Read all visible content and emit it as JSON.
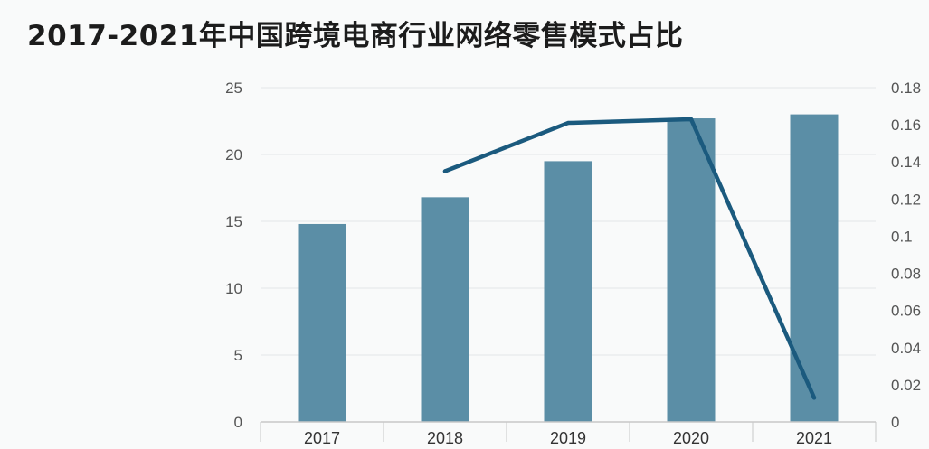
{
  "chart_data": {
    "type": "bar",
    "title": "2017-2021年中国跨境电商行业网络零售模式占比",
    "categories": [
      "2017",
      "2018",
      "2019",
      "2020",
      "2021"
    ],
    "series": [
      {
        "type": "bar",
        "axis": "left",
        "values": [
          14.8,
          16.8,
          19.5,
          22.7,
          23.0
        ]
      },
      {
        "type": "line",
        "axis": "right",
        "values": [
          null,
          0.135,
          0.161,
          0.163,
          0.013
        ]
      }
    ],
    "y_left": {
      "ylim": [
        0,
        25
      ],
      "ticks": [
        "0",
        "5",
        "10",
        "15",
        "20",
        "25"
      ]
    },
    "y_right": {
      "ylim": [
        0,
        0.18
      ],
      "ticks": [
        "0",
        "0.02",
        "0.04",
        "0.06",
        "0.08",
        "0.1",
        "0.12",
        "0.14",
        "0.16",
        "0.18"
      ]
    },
    "grid": true,
    "legend": "none",
    "colors": {
      "bar": "#5b8ea6",
      "line": "#1b5a7e",
      "grid": "#e3e6e8",
      "axis": "#c8c8c8"
    }
  }
}
